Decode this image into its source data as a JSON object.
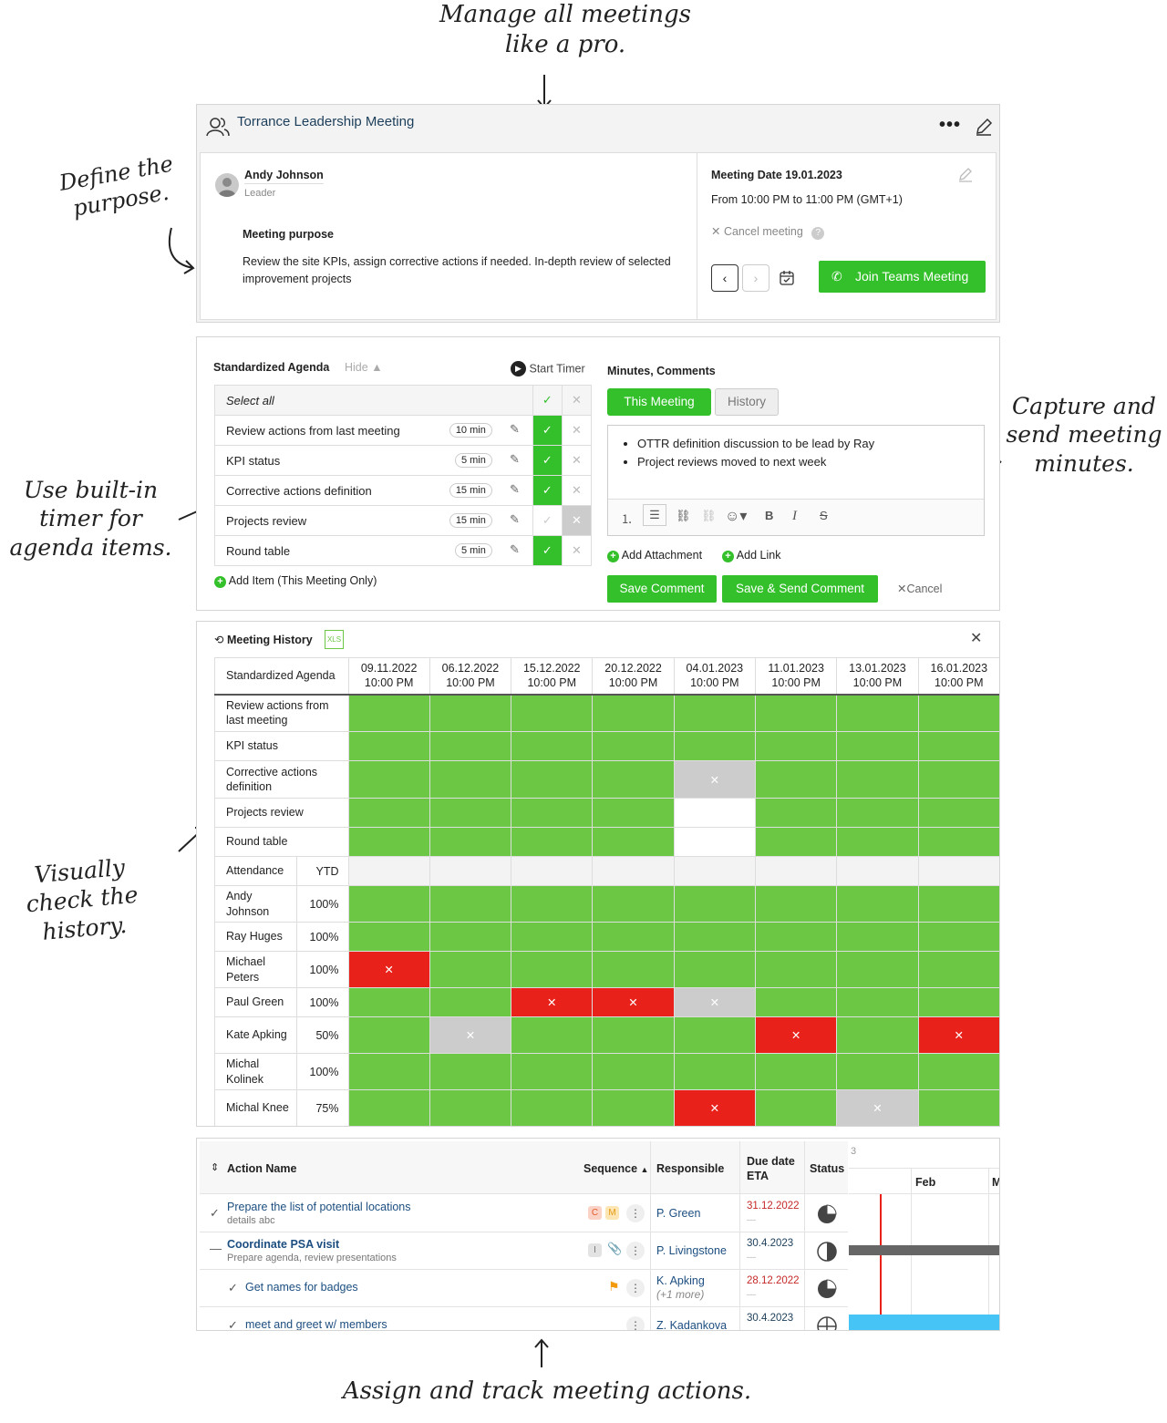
{
  "annotations": {
    "top": "Manage all meetings like a pro.",
    "purpose": "Define the purpose.",
    "timer": "Use built-in timer for agenda items.",
    "minutes": "Capture and send meeting minutes.",
    "history": "Visually check the history.",
    "actions": "Assign and track meeting actions."
  },
  "meeting": {
    "title": "Torrance Leadership Meeting",
    "leader_name": "Andy Johnson",
    "leader_role": "Leader",
    "purpose_label": "Meeting purpose",
    "purpose_text": "Review the site KPIs, assign corrective actions if needed. In-depth review of selected improvement projects",
    "date_label": "Meeting Date 19.01.2023",
    "time_range": "From 10:00 PM to 11:00 PM (GMT+1)",
    "cancel_label": "Cancel meeting",
    "join_label": "Join Teams Meeting"
  },
  "agenda": {
    "title": "Standardized Agenda",
    "hide_label": "Hide",
    "timer_label": "Start Timer",
    "select_all": "Select all",
    "items": [
      {
        "name": "Review actions from last meeting",
        "duration": "10 min",
        "done": true
      },
      {
        "name": "KPI status",
        "duration": "5 min",
        "done": true
      },
      {
        "name": "Corrective actions definition",
        "duration": "15 min",
        "done": true
      },
      {
        "name": "Projects review",
        "duration": "15 min",
        "done": false
      },
      {
        "name": "Round table",
        "duration": "5 min",
        "done": true
      }
    ],
    "add_item": "Add Item (This Meeting Only)"
  },
  "minutes": {
    "title": "Minutes, Comments",
    "tab_this": "This Meeting",
    "tab_history": "History",
    "bullets": [
      "OTTR definition discussion to be lead by Ray",
      "Project reviews moved to next week"
    ],
    "add_attachment": "Add Attachment",
    "add_link": "Add Link",
    "save": "Save Comment",
    "save_send": "Save & Send Comment",
    "cancel": "Cancel"
  },
  "history": {
    "title": "Meeting History",
    "xls": "XLS",
    "header_label": "Standardized Agenda",
    "dates": [
      {
        "d": "09.11.2022",
        "t": "10:00 PM"
      },
      {
        "d": "06.12.2022",
        "t": "10:00 PM"
      },
      {
        "d": "15.12.2022",
        "t": "10:00 PM"
      },
      {
        "d": "20.12.2022",
        "t": "10:00 PM"
      },
      {
        "d": "04.01.2023",
        "t": "10:00 PM"
      },
      {
        "d": "11.01.2023",
        "t": "10:00 PM"
      },
      {
        "d": "13.01.2023",
        "t": "10:00 PM"
      },
      {
        "d": "16.01.2023",
        "t": "10:00 PM"
      }
    ],
    "agenda_rows": [
      {
        "name": "Review actions from last meeting",
        "cells": [
          "g",
          "g",
          "g",
          "g",
          "g",
          "g",
          "g",
          "g"
        ]
      },
      {
        "name": "KPI status",
        "cells": [
          "g",
          "g",
          "g",
          "g",
          "g",
          "g",
          "g",
          "g"
        ]
      },
      {
        "name": "Corrective actions definition",
        "cells": [
          "g",
          "g",
          "g",
          "g",
          "x",
          "g",
          "g",
          "g"
        ]
      },
      {
        "name": "Projects review",
        "cells": [
          "g",
          "g",
          "g",
          "g",
          "w",
          "g",
          "g",
          "g"
        ]
      },
      {
        "name": "Round table",
        "cells": [
          "g",
          "g",
          "g",
          "g",
          "w",
          "g",
          "g",
          "g"
        ]
      }
    ],
    "attendance_label": "Attendance",
    "ytd_label": "YTD",
    "people": [
      {
        "name": "Andy Johnson",
        "ytd": "100%",
        "cells": [
          "g",
          "g",
          "g",
          "g",
          "g",
          "g",
          "g",
          "g"
        ]
      },
      {
        "name": "Ray Huges",
        "ytd": "100%",
        "cells": [
          "g",
          "g",
          "g",
          "g",
          "g",
          "g",
          "g",
          "g"
        ]
      },
      {
        "name": "Michael Peters",
        "ytd": "100%",
        "cells": [
          "r",
          "g",
          "g",
          "g",
          "g",
          "g",
          "g",
          "g"
        ]
      },
      {
        "name": "Paul Green",
        "ytd": "100%",
        "cells": [
          "g",
          "g",
          "r",
          "r",
          "x",
          "g",
          "g",
          "g"
        ]
      },
      {
        "name": "Kate Apking",
        "ytd": "50%",
        "cells": [
          "g",
          "x",
          "g",
          "g",
          "g",
          "r",
          "g",
          "r"
        ]
      },
      {
        "name": "Michal Kolinek",
        "ytd": "100%",
        "cells": [
          "g",
          "g",
          "g",
          "g",
          "g",
          "g",
          "g",
          "g"
        ]
      },
      {
        "name": "Michal Knee",
        "ytd": "75%",
        "cells": [
          "g",
          "g",
          "g",
          "g",
          "r",
          "g",
          "x",
          "g"
        ]
      }
    ]
  },
  "actions": {
    "col_name": "Action Name",
    "col_sequence": "Sequence",
    "col_responsible": "Responsible",
    "col_due": "Due date ETA",
    "col_status": "Status",
    "gantt_prev": "3",
    "gantt_feb": "Feb",
    "gantt_next": "M",
    "rows": [
      {
        "name": "Prepare the list of potential locations",
        "detail": "details abc",
        "responsible": "P. Green",
        "more": "",
        "due": "31.12.2022",
        "due_red": true
      },
      {
        "name": "Coordinate PSA visit",
        "detail": "Prepare agenda, review presentations",
        "responsible": "P. Livingstone",
        "more": "",
        "due": "30.4.2023",
        "due_red": false
      },
      {
        "name": "Get names for badges",
        "detail": "",
        "responsible": "K. Apking",
        "more": "(+1 more)",
        "due": "28.12.2022",
        "due_red": true
      },
      {
        "name": "meet and greet w/ members",
        "detail": "",
        "responsible": "Z. Kadankova",
        "more": "",
        "due": "30.4.2023",
        "due_red": false
      }
    ],
    "badges": {
      "c": "C",
      "m": "M",
      "i": "I"
    }
  },
  "colors": {
    "green": "#33c02a",
    "cell_green": "#6cc744",
    "red": "#e8221b",
    "grey": "#cccccc"
  }
}
